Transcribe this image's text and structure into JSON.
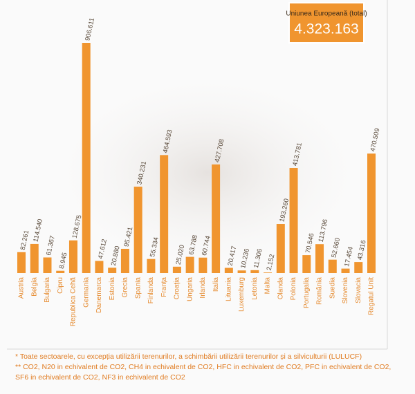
{
  "chart_data": {
    "type": "bar",
    "categories": [
      "Austria",
      "Belgia",
      "Bulgaria",
      "Cipru",
      "Republica Cehă",
      "Germania",
      "Danemarca",
      "Estonia",
      "Grecia",
      "Spania",
      "Finlanda",
      "Franța",
      "Croația",
      "Ungaria",
      "Irlanda",
      "Italia",
      "Lituania",
      "Luxemburg",
      "Letonia",
      "Malta",
      "Olanda",
      "Polonia",
      "Portugalia",
      "România",
      "Suedia",
      "Slovenia",
      "Slovacia",
      "Regatul Unit"
    ],
    "values": [
      82261,
      114540,
      61367,
      8945,
      128675,
      906611,
      47612,
      20880,
      95421,
      340231,
      55334,
      464593,
      25020,
      63788,
      60744,
      427708,
      20417,
      10236,
      11306,
      2152,
      193260,
      413781,
      70546,
      113796,
      52660,
      17454,
      43316,
      470509
    ],
    "value_labels": [
      "82.261",
      "114.540",
      "61.367",
      "8.945",
      "128.675",
      "906.611",
      "47.612",
      "20.880",
      "95.421",
      "340.231",
      "55.334",
      "464.593",
      "25.020",
      "63.788",
      "60.744",
      "427.708",
      "20.417",
      "10.236",
      "11.306",
      "2.152",
      "193.260",
      "413.781",
      "70.546",
      "113.796",
      "52.660",
      "17.454",
      "43.316",
      "470.509"
    ],
    "color": "#f0952f",
    "total": {
      "name": "Uniunea Europeană (total)",
      "value": 4323163,
      "value_label": "4.323.163"
    },
    "notes": [
      "* Toate sectoarele, cu excepția utilizării terenurilor, a schimbării utilizării terenurilor și a silviculturii (LULUCF)",
      "** CO2, N20 in echivalent de CO2, CH4 in echivalent de CO2, HFC in echivalent de CO2, PFC in echivalent de CO2,",
      "SF6 in echivalent de CO2, NF3 in echivalent de CO2"
    ]
  }
}
